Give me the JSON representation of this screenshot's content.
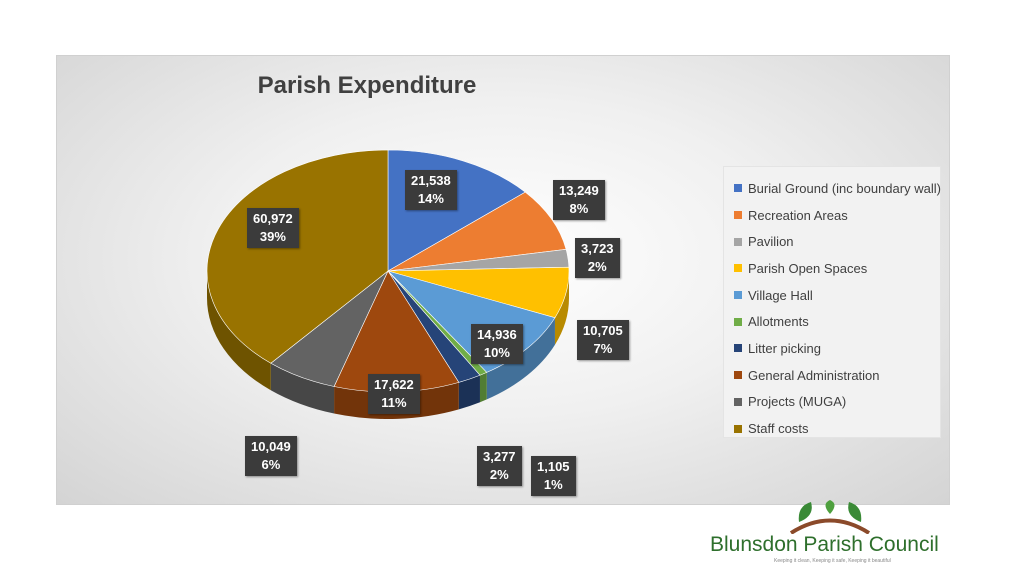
{
  "chart_data": {
    "type": "pie",
    "title": "Parish Expenditure",
    "categories": [
      "Burial Ground (inc boundary wall)",
      "Recreation Areas",
      "Pavilion",
      "Parish Open Spaces",
      "Village Hall",
      "Allotments",
      "Litter picking",
      "General Administration",
      "Projects (MUGA)",
      "Staff costs"
    ],
    "values": [
      21538,
      13249,
      3723,
      10705,
      14936,
      1105,
      3277,
      17622,
      10049,
      60972
    ],
    "value_labels": [
      "21,538",
      "13,249",
      "3,723",
      "10,705",
      "14,936",
      "1,105",
      "3,277",
      "17,622",
      "10,049",
      "60,972"
    ],
    "percent_labels": [
      "14%",
      "8%",
      "2%",
      "7%",
      "10%",
      "1%",
      "2%",
      "11%",
      "6%",
      "39%"
    ],
    "colors": [
      "#4472c4",
      "#ed7d31",
      "#a5a5a5",
      "#ffc000",
      "#5b9bd5",
      "#70ad47",
      "#264478",
      "#9e480e",
      "#636363",
      "#997300"
    ],
    "legend_position": "right"
  },
  "logo": {
    "name": "Blunsdon Parish Council",
    "tagline": "Keeping it clean, Keeping it safe, Keeping it beautiful"
  }
}
